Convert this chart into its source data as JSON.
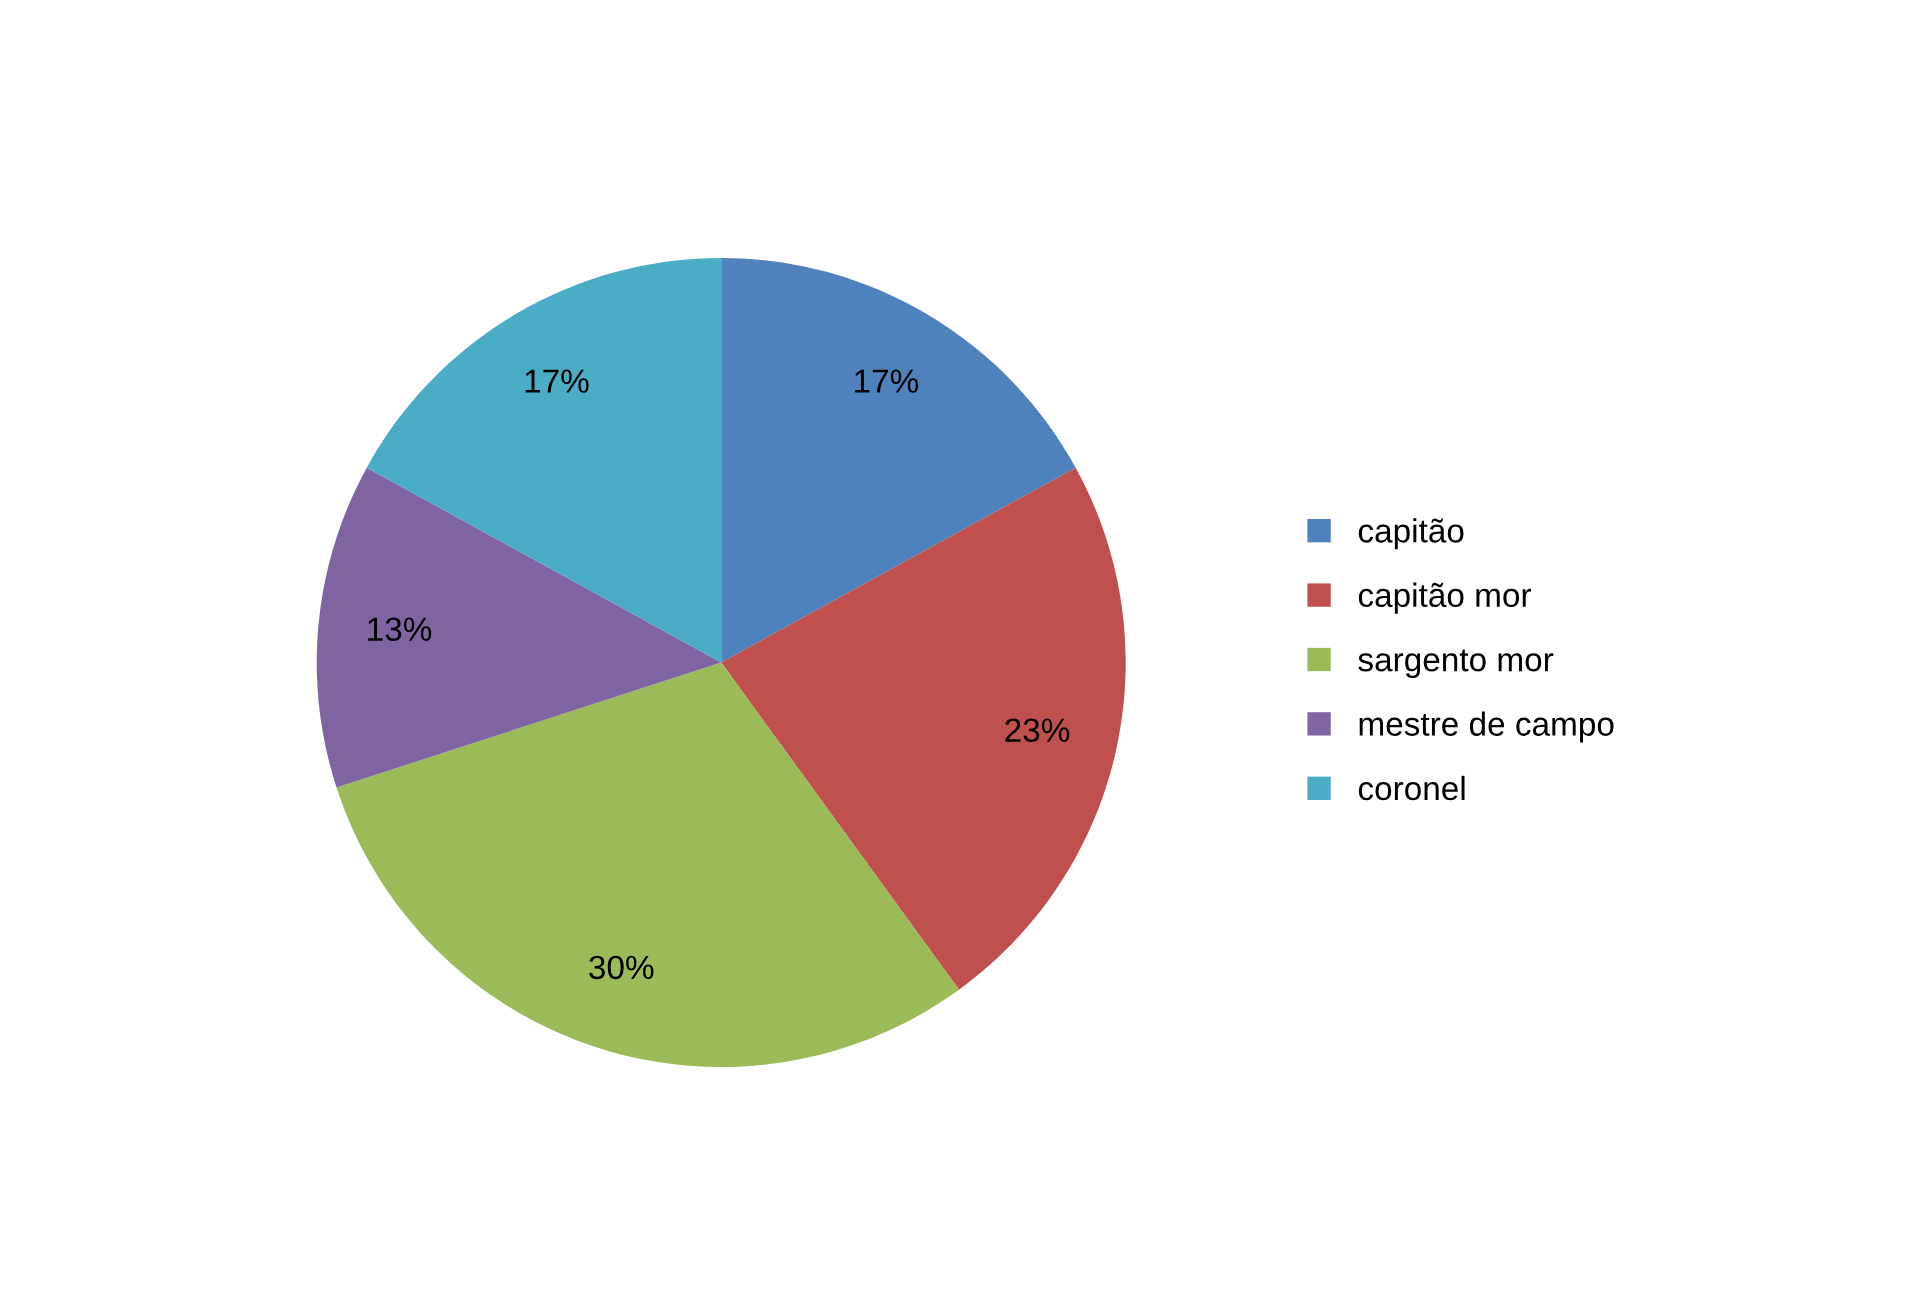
{
  "chart_data": {
    "type": "pie",
    "categories": [
      "capitão",
      "capitão mor",
      "sargento mor",
      "mestre de campo",
      "coronel"
    ],
    "values": [
      17,
      23,
      30,
      13,
      17
    ],
    "colors": [
      "#4f81bd",
      "#c0504d",
      "#9bbb59",
      "#8064a2",
      "#4bacc6"
    ],
    "value_labels": [
      "17%",
      "23%",
      "30%",
      "13%",
      "17%"
    ],
    "legend": "right"
  }
}
